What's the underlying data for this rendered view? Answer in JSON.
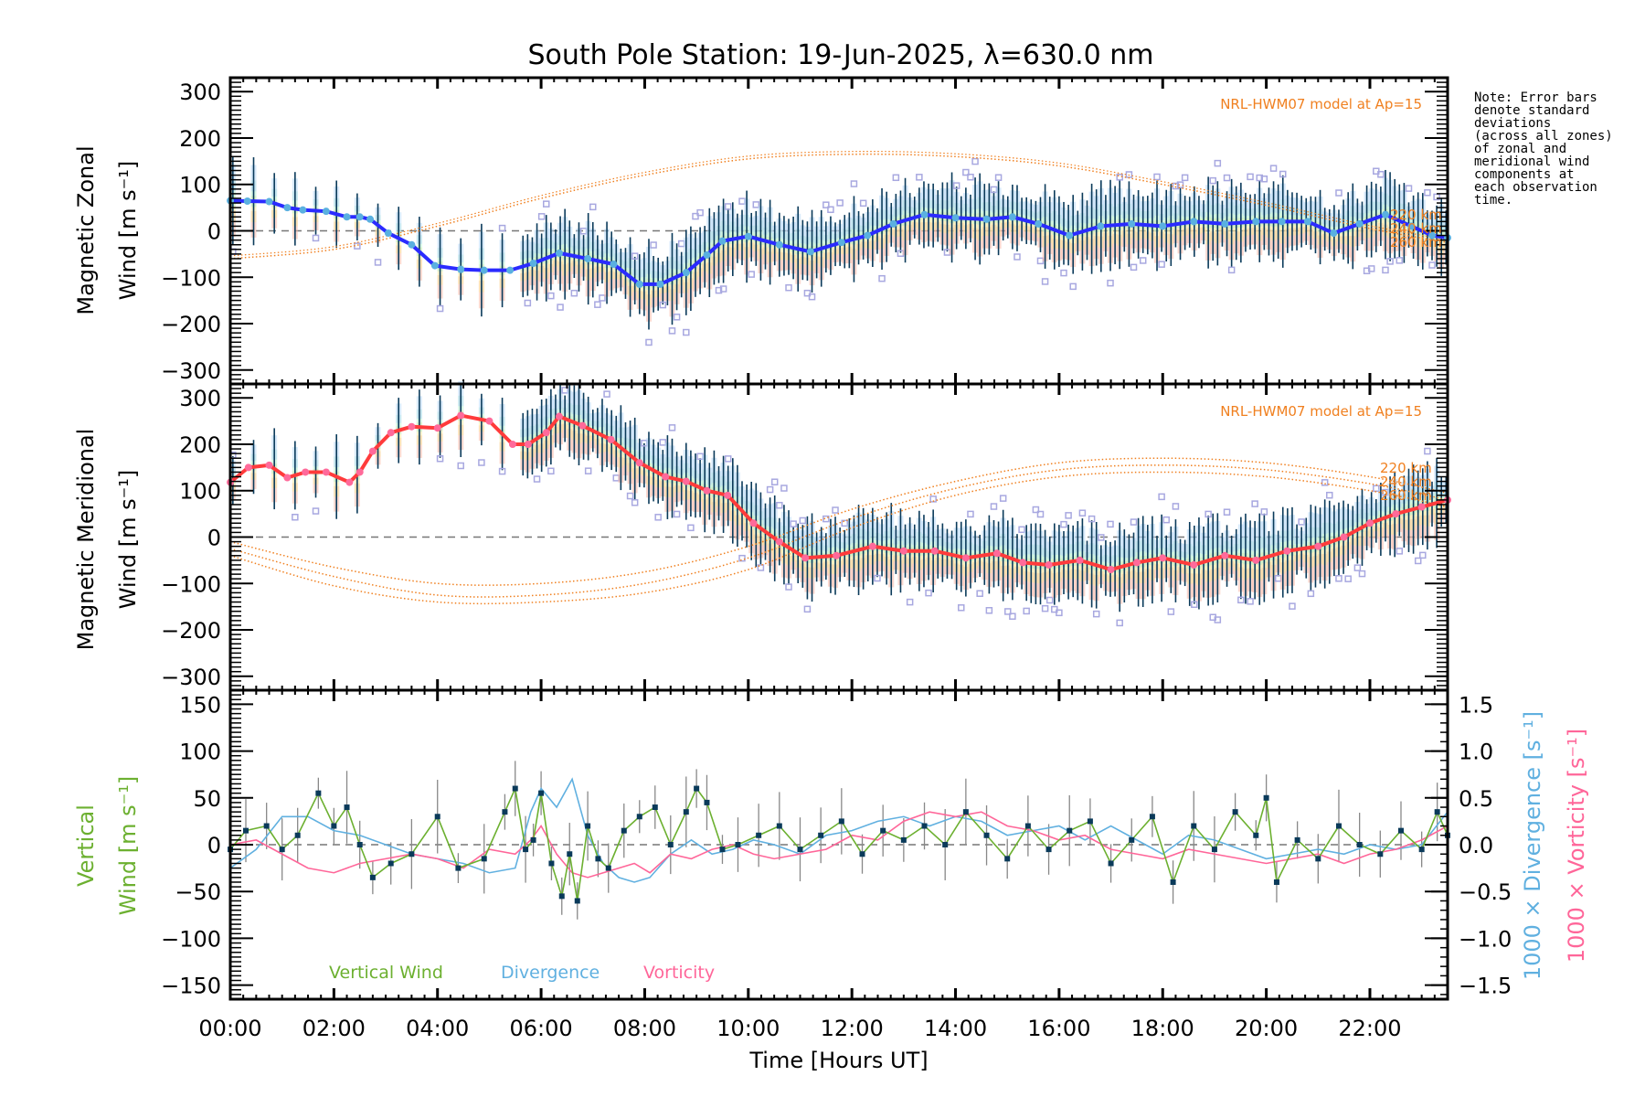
{
  "chart_data": [
    {
      "panel": "zonal",
      "type": "line",
      "title": "South Pole Station: 19-Jun-2025, λ=630.0 nm",
      "xlabel": "Time [Hours UT]",
      "ylabel_line1": "Magnetic Zonal",
      "ylabel_line2": "Wind [m s⁻¹]",
      "xlim": [
        0,
        23.5
      ],
      "ylim": [
        -330,
        330
      ],
      "yticks": [
        300,
        200,
        100,
        0,
        -100,
        -200,
        -300
      ],
      "ytick_labels": [
        "300",
        "200",
        "100",
        "0",
        "−100",
        "−200",
        "−300"
      ],
      "grid": false,
      "zero_line": true,
      "model_annotation": "NRL-HWM07 model at Ap=15",
      "model_altitudes": [
        "220 km",
        "240 km",
        "260 km"
      ],
      "series": [
        {
          "name": "Zonal wind (mean)",
          "color": "#2b2bff",
          "marker_color": "#5ab0e0",
          "x": [
            0.0,
            0.33,
            0.75,
            1.1,
            1.4,
            1.85,
            2.25,
            2.5,
            2.7,
            3.05,
            3.5,
            3.95,
            4.45,
            4.9,
            5.4,
            5.85,
            6.35,
            6.9,
            7.4,
            7.9,
            8.3,
            8.8,
            9.2,
            9.5,
            10.0,
            10.6,
            11.2,
            11.8,
            12.3,
            12.8,
            13.4,
            14.0,
            14.6,
            15.1,
            15.6,
            16.2,
            16.8,
            17.4,
            18.0,
            18.6,
            19.2,
            19.8,
            20.3,
            20.8,
            21.3,
            21.8,
            22.3,
            22.8,
            23.2,
            23.5
          ],
          "values": [
            65,
            64,
            63,
            50,
            45,
            42,
            30,
            30,
            25,
            -5,
            -30,
            -75,
            -83,
            -85,
            -85,
            -70,
            -48,
            -60,
            -72,
            -115,
            -115,
            -90,
            -52,
            -22,
            -12,
            -30,
            -45,
            -25,
            -10,
            15,
            35,
            28,
            25,
            30,
            15,
            -10,
            10,
            15,
            10,
            20,
            15,
            20,
            20,
            20,
            -5,
            15,
            35,
            10,
            -10,
            -15
          ]
        },
        {
          "name": "NRL-HWM07 model",
          "color": "#f08020",
          "style": "dotted",
          "x": [
            0,
            2,
            4,
            6,
            8,
            10,
            12,
            14,
            16,
            18,
            20,
            22,
            23.5
          ],
          "values": [
            -60,
            -40,
            10,
            70,
            120,
            155,
            165,
            160,
            140,
            100,
            55,
            5,
            -25
          ]
        }
      ]
    },
    {
      "panel": "meridional",
      "type": "line",
      "ylabel_line1": "Magnetic Meridional",
      "ylabel_line2": "Wind [m s⁻¹]",
      "xlim": [
        0,
        23.5
      ],
      "ylim": [
        -330,
        330
      ],
      "yticks": [
        300,
        200,
        100,
        0,
        -100,
        -200,
        -300
      ],
      "ytick_labels": [
        "300",
        "200",
        "100",
        "0",
        "−100",
        "−200",
        "−300"
      ],
      "grid": false,
      "zero_line": true,
      "model_annotation": "NRL-HWM07 model at Ap=15",
      "model_altitudes": [
        "220 km",
        "240 km",
        "260 km"
      ],
      "series": [
        {
          "name": "Meridional wind (mean)",
          "color": "#ff3b3b",
          "marker_color": "#ff6a9a",
          "x": [
            0.0,
            0.35,
            0.75,
            1.1,
            1.45,
            1.85,
            2.3,
            2.5,
            2.75,
            3.1,
            3.5,
            4.0,
            4.45,
            5.0,
            5.45,
            5.75,
            6.1,
            6.35,
            6.8,
            7.35,
            7.9,
            8.4,
            8.8,
            9.2,
            9.6,
            10.1,
            10.6,
            11.1,
            11.7,
            12.4,
            13.0,
            13.6,
            14.2,
            14.8,
            15.3,
            15.8,
            16.4,
            17.0,
            17.5,
            18.0,
            18.6,
            19.2,
            19.8,
            20.4,
            21.0,
            21.5,
            22.0,
            22.5,
            23.0,
            23.5
          ],
          "values": [
            118,
            150,
            155,
            128,
            140,
            140,
            118,
            140,
            185,
            225,
            238,
            235,
            262,
            250,
            200,
            200,
            225,
            260,
            240,
            210,
            160,
            130,
            120,
            100,
            90,
            30,
            -10,
            -45,
            -40,
            -20,
            -30,
            -30,
            -45,
            -35,
            -55,
            -60,
            -50,
            -70,
            -55,
            -45,
            -60,
            -40,
            -50,
            -30,
            -20,
            0,
            30,
            50,
            65,
            80
          ]
        },
        {
          "name": "NRL-HWM07 model 220 km",
          "color": "#f08020",
          "style": "dotted",
          "x": [
            0,
            2,
            4,
            6,
            8,
            10,
            12,
            14,
            16,
            18,
            20,
            22,
            23.5
          ],
          "values": [
            -10,
            -65,
            -100,
            -100,
            -75,
            -20,
            60,
            120,
            160,
            170,
            160,
            130,
            95
          ]
        },
        {
          "name": "NRL-HWM07 model 240 km",
          "color": "#f08020",
          "style": "dotted",
          "x": [
            0,
            2,
            4,
            6,
            8,
            10,
            12,
            14,
            16,
            18,
            20,
            22,
            23.5
          ],
          "values": [
            -25,
            -85,
            -125,
            -125,
            -100,
            -45,
            40,
            105,
            145,
            155,
            145,
            115,
            80
          ]
        },
        {
          "name": "NRL-HWM07 model 260 km",
          "color": "#f08020",
          "style": "dotted",
          "x": [
            0,
            2,
            4,
            6,
            8,
            10,
            12,
            14,
            16,
            18,
            20,
            22,
            23.5
          ],
          "values": [
            -40,
            -105,
            -140,
            -140,
            -120,
            -70,
            20,
            90,
            130,
            140,
            130,
            100,
            65
          ]
        }
      ]
    },
    {
      "panel": "vertical",
      "type": "line",
      "xlabel": "Time [Hours UT]",
      "ylabel_line1": "Vertical",
      "ylabel_line2": "Wind [m s⁻¹]",
      "y2label_divergence": "1000 × Divergence [s⁻¹]",
      "y2label_vorticity": "1000 × Vorticity [s⁻¹]",
      "xlim": [
        0,
        23.5
      ],
      "ylim": [
        -165,
        165
      ],
      "y2lim": [
        -1.65,
        1.65
      ],
      "yticks": [
        150,
        100,
        50,
        0,
        -50,
        -100,
        -150
      ],
      "ytick_labels": [
        "150",
        "100",
        "50",
        "0",
        "−50",
        "−100",
        "−150"
      ],
      "y2ticks": [
        1.5,
        1.0,
        0.5,
        0.0,
        -0.5,
        -1.0,
        -1.5
      ],
      "y2tick_labels": [
        "1.5",
        "1.0",
        "0.5",
        "0.0",
        "−0.5",
        "−1.0",
        "−1.5"
      ],
      "xticks": [
        0,
        2,
        4,
        6,
        8,
        10,
        12,
        14,
        16,
        18,
        20,
        22
      ],
      "xtick_labels": [
        "00:00",
        "02:00",
        "04:00",
        "06:00",
        "08:00",
        "10:00",
        "12:00",
        "14:00",
        "16:00",
        "18:00",
        "20:00",
        "22:00"
      ],
      "grid": false,
      "zero_line": true,
      "legend": [
        "Vertical Wind",
        "Divergence",
        "Vorticity"
      ],
      "legend_placement": "bottom-left",
      "series": [
        {
          "name": "Vertical Wind",
          "color": "#6cb030",
          "x": [
            0.0,
            0.3,
            0.7,
            1.0,
            1.3,
            1.7,
            2.0,
            2.25,
            2.5,
            2.75,
            3.1,
            3.5,
            4.0,
            4.4,
            4.9,
            5.3,
            5.5,
            5.7,
            5.85,
            6.0,
            6.2,
            6.4,
            6.55,
            6.7,
            6.9,
            7.1,
            7.3,
            7.6,
            7.9,
            8.2,
            8.5,
            8.8,
            9.0,
            9.2,
            9.5,
            9.8,
            10.2,
            10.6,
            11.0,
            11.4,
            11.8,
            12.2,
            12.6,
            13.0,
            13.4,
            13.8,
            14.2,
            14.6,
            15.0,
            15.4,
            15.8,
            16.2,
            16.6,
            17.0,
            17.4,
            17.8,
            18.2,
            18.6,
            19.0,
            19.4,
            19.8,
            20.0,
            20.2,
            20.6,
            21.0,
            21.4,
            21.8,
            22.2,
            22.6,
            23.0,
            23.3,
            23.5
          ],
          "values": [
            -5,
            15,
            20,
            -5,
            10,
            55,
            20,
            40,
            0,
            -35,
            -20,
            -10,
            30,
            -25,
            -15,
            35,
            60,
            -5,
            5,
            55,
            -20,
            -55,
            -10,
            -60,
            20,
            -15,
            -25,
            15,
            30,
            40,
            0,
            35,
            60,
            45,
            -5,
            0,
            10,
            20,
            -5,
            10,
            25,
            -10,
            15,
            5,
            20,
            0,
            35,
            10,
            -15,
            20,
            -5,
            15,
            25,
            -20,
            5,
            30,
            -40,
            20,
            -5,
            35,
            10,
            50,
            -40,
            5,
            -15,
            20,
            0,
            -10,
            15,
            -5,
            35,
            10
          ]
        },
        {
          "name": "Divergence",
          "color": "#60b0e0",
          "axis": "right",
          "x": [
            0.0,
            0.5,
            1.0,
            1.5,
            2.0,
            2.5,
            3.0,
            3.5,
            4.0,
            4.5,
            5.0,
            5.5,
            5.8,
            6.0,
            6.3,
            6.6,
            6.9,
            7.2,
            7.5,
            7.8,
            8.1,
            8.5,
            8.9,
            9.3,
            9.7,
            10.1,
            10.5,
            11.0,
            11.5,
            12.0,
            12.5,
            13.0,
            13.5,
            14.0,
            14.5,
            15.0,
            15.5,
            16.0,
            16.5,
            17.0,
            17.5,
            18.0,
            18.5,
            19.0,
            19.5,
            20.0,
            20.5,
            21.0,
            21.5,
            22.0,
            22.5,
            23.0,
            23.5
          ],
          "values": [
            -0.25,
            -0.05,
            0.3,
            0.3,
            0.15,
            0.1,
            0.0,
            -0.1,
            -0.15,
            -0.2,
            -0.3,
            -0.25,
            0.35,
            0.6,
            0.4,
            0.7,
            0.1,
            -0.2,
            -0.35,
            -0.4,
            -0.35,
            -0.1,
            0.05,
            -0.1,
            -0.05,
            0.05,
            0.0,
            -0.1,
            0.1,
            0.15,
            0.25,
            0.3,
            0.2,
            0.3,
            0.25,
            0.1,
            0.15,
            0.2,
            0.05,
            0.2,
            0.05,
            -0.1,
            0.1,
            0.05,
            -0.05,
            -0.15,
            -0.1,
            -0.05,
            -0.1,
            0.0,
            -0.05,
            0.0,
            0.35
          ]
        },
        {
          "name": "Vorticity",
          "color": "#ff6699",
          "axis": "right",
          "x": [
            0.0,
            0.5,
            1.0,
            1.5,
            2.0,
            2.5,
            3.0,
            3.5,
            4.0,
            4.5,
            5.0,
            5.5,
            5.8,
            6.0,
            6.3,
            6.6,
            6.9,
            7.2,
            7.5,
            7.8,
            8.1,
            8.5,
            8.9,
            9.3,
            9.7,
            10.1,
            10.5,
            11.0,
            11.5,
            12.0,
            12.5,
            13.0,
            13.5,
            14.0,
            14.5,
            15.0,
            15.5,
            16.0,
            16.5,
            17.0,
            17.5,
            18.0,
            18.5,
            19.0,
            19.5,
            20.0,
            20.5,
            21.0,
            21.5,
            22.0,
            22.5,
            23.0,
            23.5
          ],
          "values": [
            0.0,
            0.05,
            -0.1,
            -0.25,
            -0.3,
            -0.2,
            -0.15,
            -0.1,
            -0.15,
            -0.25,
            -0.05,
            -0.1,
            0.05,
            0.2,
            -0.1,
            -0.3,
            -0.35,
            -0.3,
            -0.25,
            -0.2,
            -0.3,
            -0.1,
            -0.15,
            -0.05,
            0.0,
            -0.1,
            -0.15,
            -0.1,
            -0.05,
            0.1,
            0.05,
            0.25,
            0.35,
            0.3,
            0.35,
            0.2,
            0.15,
            0.05,
            0.1,
            -0.05,
            -0.1,
            -0.15,
            -0.05,
            -0.1,
            -0.15,
            -0.2,
            -0.15,
            -0.1,
            -0.2,
            -0.1,
            -0.05,
            0.05,
            0.2
          ]
        }
      ]
    }
  ],
  "note": [
    "Note: Error bars",
    "denote standard",
    "deviations",
    "(across all zones)",
    "of zonal and",
    "meridional wind",
    "components at",
    "each observation",
    "time."
  ]
}
